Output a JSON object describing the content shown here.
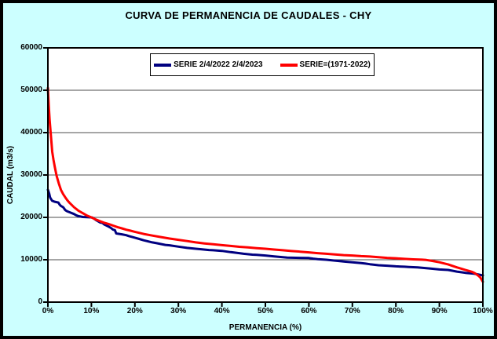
{
  "colors": {
    "canvas_background": "#CCFFFF",
    "plot_background": "#FFFFFF",
    "gridline": "#4D4D4D",
    "axis": "#000000",
    "text": "#000000"
  },
  "chart_data": {
    "type": "line",
    "title": "CURVA DE PERMANENCIA DE CAUDALES - CHY",
    "xlabel": "PERMANENCIA (%)",
    "ylabel": "CAUDAL (m3/s)",
    "xlim": [
      0,
      100
    ],
    "ylim": [
      0,
      60000
    ],
    "grid": "horizontal-only",
    "legend_position": "inside-top-center",
    "x_ticks": [
      {
        "v": 0,
        "label": "0%"
      },
      {
        "v": 10,
        "label": "10%"
      },
      {
        "v": 20,
        "label": "20%"
      },
      {
        "v": 30,
        "label": "30%"
      },
      {
        "v": 40,
        "label": "40%"
      },
      {
        "v": 50,
        "label": "50%"
      },
      {
        "v": 60,
        "label": "60%"
      },
      {
        "v": 70,
        "label": "70%"
      },
      {
        "v": 80,
        "label": "80%"
      },
      {
        "v": 90,
        "label": "90%"
      },
      {
        "v": 100,
        "label": "100%"
      }
    ],
    "y_ticks": [
      {
        "v": 0,
        "label": "0"
      },
      {
        "v": 10000,
        "label": "10000"
      },
      {
        "v": 20000,
        "label": "20000"
      },
      {
        "v": 30000,
        "label": "30000"
      },
      {
        "v": 40000,
        "label": "40000"
      },
      {
        "v": 50000,
        "label": "50000"
      },
      {
        "v": 60000,
        "label": "60000"
      }
    ],
    "series": [
      {
        "name": "SERIE 2/4/2022 2/4/2023",
        "color": "#000080",
        "points": [
          [
            0,
            26500
          ],
          [
            0.3,
            25600
          ],
          [
            0.5,
            24700
          ],
          [
            0.8,
            24200
          ],
          [
            1,
            23900
          ],
          [
            1.5,
            23700
          ],
          [
            2,
            23600
          ],
          [
            2.4,
            23500
          ],
          [
            2.7,
            23000
          ],
          [
            3,
            22700
          ],
          [
            3.5,
            22400
          ],
          [
            4,
            21700
          ],
          [
            4.5,
            21400
          ],
          [
            5,
            21200
          ],
          [
            6,
            20800
          ],
          [
            6.5,
            20500
          ],
          [
            7,
            20300
          ],
          [
            8,
            20100
          ],
          [
            9,
            20050
          ],
          [
            10,
            20000
          ],
          [
            10.3,
            19900
          ],
          [
            11,
            19400
          ],
          [
            12,
            18800
          ],
          [
            12.5,
            18700
          ],
          [
            13,
            18300
          ],
          [
            14,
            17800
          ],
          [
            14.5,
            17500
          ],
          [
            15,
            17100
          ],
          [
            15.4,
            17000
          ],
          [
            15.7,
            16200
          ],
          [
            17,
            16000
          ],
          [
            18,
            15800
          ],
          [
            18.6,
            15600
          ],
          [
            20,
            15200
          ],
          [
            21,
            14900
          ],
          [
            22,
            14600
          ],
          [
            24,
            14100
          ],
          [
            25,
            13900
          ],
          [
            27,
            13500
          ],
          [
            28,
            13400
          ],
          [
            30,
            13100
          ],
          [
            32,
            12800
          ],
          [
            34,
            12600
          ],
          [
            35,
            12500
          ],
          [
            37,
            12300
          ],
          [
            38,
            12250
          ],
          [
            40,
            12100
          ],
          [
            42,
            11800
          ],
          [
            44,
            11550
          ],
          [
            45,
            11400
          ],
          [
            47,
            11200
          ],
          [
            48,
            11150
          ],
          [
            50,
            11000
          ],
          [
            52,
            10800
          ],
          [
            54,
            10600
          ],
          [
            55,
            10500
          ],
          [
            57,
            10460
          ],
          [
            58,
            10450
          ],
          [
            60,
            10400
          ],
          [
            61,
            10250
          ],
          [
            62,
            10150
          ],
          [
            64,
            10000
          ],
          [
            66,
            9800
          ],
          [
            68,
            9600
          ],
          [
            70,
            9400
          ],
          [
            72,
            9200
          ],
          [
            73,
            9100
          ],
          [
            74,
            8950
          ],
          [
            76,
            8700
          ],
          [
            78,
            8600
          ],
          [
            80,
            8450
          ],
          [
            82,
            8350
          ],
          [
            83,
            8300
          ],
          [
            85,
            8200
          ],
          [
            86,
            8100
          ],
          [
            88,
            7900
          ],
          [
            90,
            7700
          ],
          [
            92,
            7600
          ],
          [
            93,
            7400
          ],
          [
            94,
            7200
          ],
          [
            95,
            7050
          ],
          [
            96,
            6900
          ],
          [
            97,
            6800
          ],
          [
            98,
            6700
          ],
          [
            99,
            6500
          ],
          [
            100,
            6300
          ]
        ]
      },
      {
        "name": "SERIE=(1971-2022)",
        "color": "#FF0000",
        "points": [
          [
            0,
            50500
          ],
          [
            0.2,
            46500
          ],
          [
            0.4,
            43000
          ],
          [
            0.6,
            40500
          ],
          [
            0.8,
            38000
          ],
          [
            1,
            35500
          ],
          [
            1.3,
            33500
          ],
          [
            1.6,
            31800
          ],
          [
            2,
            29800
          ],
          [
            2.5,
            28000
          ],
          [
            3,
            26500
          ],
          [
            3.5,
            25500
          ],
          [
            4,
            24700
          ],
          [
            4.5,
            24000
          ],
          [
            5,
            23400
          ],
          [
            5.5,
            22900
          ],
          [
            6,
            22400
          ],
          [
            6.5,
            22000
          ],
          [
            7,
            21600
          ],
          [
            7.5,
            21300
          ],
          [
            8,
            21000
          ],
          [
            8.5,
            20700
          ],
          [
            9,
            20400
          ],
          [
            9.5,
            20200
          ],
          [
            10,
            20000
          ],
          [
            11,
            19500
          ],
          [
            12,
            19100
          ],
          [
            13,
            18700
          ],
          [
            14,
            18400
          ],
          [
            15,
            18050
          ],
          [
            16,
            17700
          ],
          [
            17,
            17400
          ],
          [
            18,
            17100
          ],
          [
            19,
            16850
          ],
          [
            20,
            16600
          ],
          [
            22,
            16100
          ],
          [
            24,
            15700
          ],
          [
            26,
            15350
          ],
          [
            28,
            15000
          ],
          [
            30,
            14700
          ],
          [
            32,
            14400
          ],
          [
            34,
            14100
          ],
          [
            36,
            13850
          ],
          [
            38,
            13650
          ],
          [
            40,
            13450
          ],
          [
            42,
            13250
          ],
          [
            44,
            13050
          ],
          [
            46,
            12900
          ],
          [
            48,
            12750
          ],
          [
            50,
            12600
          ],
          [
            52,
            12400
          ],
          [
            54,
            12250
          ],
          [
            56,
            12050
          ],
          [
            58,
            11900
          ],
          [
            60,
            11750
          ],
          [
            62,
            11550
          ],
          [
            64,
            11400
          ],
          [
            66,
            11250
          ],
          [
            68,
            11100
          ],
          [
            70,
            11000
          ],
          [
            72,
            10850
          ],
          [
            74,
            10750
          ],
          [
            76,
            10600
          ],
          [
            78,
            10450
          ],
          [
            80,
            10350
          ],
          [
            82,
            10200
          ],
          [
            84,
            10100
          ],
          [
            86,
            10020
          ],
          [
            87,
            9950
          ],
          [
            88,
            9800
          ],
          [
            89,
            9600
          ],
          [
            90,
            9400
          ],
          [
            91,
            9150
          ],
          [
            92,
            8900
          ],
          [
            93,
            8550
          ],
          [
            94,
            8200
          ],
          [
            95,
            7900
          ],
          [
            96,
            7600
          ],
          [
            97,
            7300
          ],
          [
            97.5,
            7150
          ],
          [
            98,
            6900
          ],
          [
            98.5,
            6600
          ],
          [
            99,
            6200
          ],
          [
            99.5,
            5700
          ],
          [
            100,
            4800
          ]
        ]
      }
    ]
  },
  "layout_geometry_note": "plot area spans the inner white rectangle"
}
